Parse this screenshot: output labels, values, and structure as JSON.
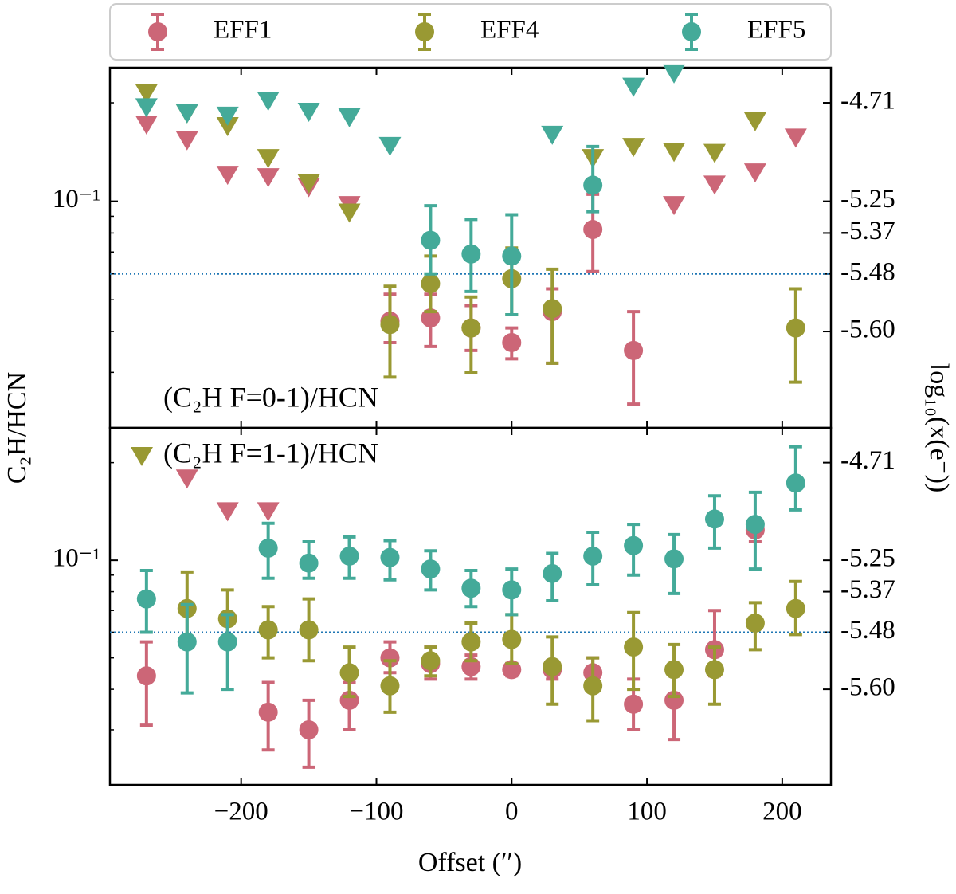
{
  "chart_data": [
    {
      "type": "scatter",
      "log_y": true,
      "ylabel": "C₂H/HCN",
      "y2label": "log₁₀(x(e⁻))",
      "annotation": "(C₂H F=0-1)/HCN",
      "legend": "top-outside",
      "x": [
        -270,
        -240,
        -210,
        -180,
        -150,
        -120,
        -90,
        -60,
        -30,
        0,
        30,
        60,
        90,
        120,
        150,
        180,
        210
      ],
      "xlim": [
        -297,
        236
      ],
      "ylim": [
        0.0203,
        0.256
      ],
      "yticks": [
        {
          "value": 0.1,
          "label": "10⁻¹"
        }
      ],
      "yminorticks": [
        0.03,
        0.04,
        0.05,
        0.06,
        0.07,
        0.08,
        0.09,
        0.2
      ],
      "y2ticks": [
        {
          "value": 0.2,
          "label": "-4.71"
        },
        {
          "value": 0.1,
          "label": "-5.25"
        },
        {
          "value": 0.08,
          "label": "-5.37"
        },
        {
          "value": 0.06,
          "label": "-5.48"
        },
        {
          "value": 0.04,
          "label": "-5.60"
        }
      ],
      "hline": 0.06,
      "hline_color": "#1f77b4",
      "series": [
        {
          "name": "EFF1",
          "color": "#cc6677",
          "values": [
            null,
            null,
            null,
            null,
            null,
            null,
            0.043,
            0.044,
            0.041,
            0.037,
            0.046,
            0.082,
            0.035,
            null,
            null,
            null,
            null
          ],
          "errors": [
            null,
            null,
            null,
            null,
            null,
            null,
            [
              0.006,
              0.009
            ],
            [
              0.008,
              0.008
            ],
            [
              0.006,
              0.007
            ],
            [
              0.004,
              0.004
            ],
            [
              0.014,
              0.008
            ],
            [
              0.021,
              0.023
            ],
            [
              0.011,
              0.011
            ],
            null,
            null,
            null,
            null
          ],
          "upper_limits": [
            0.171,
            0.153,
            0.12,
            0.118,
            0.11,
            0.097,
            null,
            null,
            null,
            null,
            null,
            null,
            null,
            0.097,
            0.112,
            0.122,
            0.156
          ]
        },
        {
          "name": "EFF4",
          "color": "#999933",
          "values": [
            null,
            null,
            null,
            null,
            null,
            null,
            0.042,
            0.056,
            0.041,
            0.058,
            0.047,
            null,
            null,
            null,
            null,
            null,
            0.041
          ],
          "errors": [
            null,
            null,
            null,
            null,
            null,
            null,
            [
              0.013,
              0.013
            ],
            [
              0.01,
              0.012
            ],
            [
              0.011,
              0.01
            ],
            [
              0.013,
              0.014
            ],
            [
              0.015,
              0.015
            ],
            null,
            null,
            null,
            null,
            null,
            [
              0.013,
              0.013
            ]
          ],
          "upper_limits": [
            0.213,
            0.185,
            0.169,
            0.135,
            0.113,
            0.092,
            null,
            null,
            null,
            null,
            null,
            0.135,
            0.146,
            0.141,
            0.14,
            0.175,
            null
          ]
        },
        {
          "name": "EFF5",
          "color": "#44aa99",
          "values": [
            null,
            null,
            null,
            null,
            null,
            null,
            null,
            0.076,
            0.069,
            0.068,
            null,
            0.112,
            null,
            null,
            null,
            null,
            null
          ],
          "errors": [
            null,
            null,
            null,
            null,
            null,
            null,
            null,
            [
              0.016,
              0.021
            ],
            [
              0.016,
              0.019
            ],
            [
              0.023,
              0.023
            ],
            null,
            [
              0.019,
              0.035
            ],
            null,
            null,
            null,
            null,
            null
          ],
          "upper_limits": [
            0.193,
            0.185,
            0.182,
            0.202,
            0.187,
            0.18,
            0.147,
            null,
            null,
            null,
            0.159,
            null,
            0.223,
            0.245,
            null,
            null,
            null
          ]
        }
      ]
    },
    {
      "type": "scatter",
      "log_y": true,
      "xlabel": "Offset (′′)",
      "annotation": "(C₂H F=1-1)/HCN",
      "x": [
        -270,
        -240,
        -210,
        -180,
        -150,
        -120,
        -90,
        -60,
        -30,
        0,
        30,
        60,
        90,
        120,
        150,
        180,
        210
      ],
      "xlim": [
        -297,
        236
      ],
      "ylim": [
        0.0203,
        0.256
      ],
      "xticks": [
        {
          "value": -200,
          "label": "−200"
        },
        {
          "value": -100,
          "label": "−100"
        },
        0,
        100,
        200
      ],
      "yticks": [
        {
          "value": 0.1,
          "label": "10⁻¹"
        }
      ],
      "yminorticks": [
        0.03,
        0.04,
        0.05,
        0.06,
        0.07,
        0.08,
        0.09,
        0.2
      ],
      "y2ticks": [
        {
          "value": 0.2,
          "label": "-4.71"
        },
        {
          "value": 0.1,
          "label": "-5.25"
        },
        {
          "value": 0.08,
          "label": "-5.37"
        },
        {
          "value": 0.06,
          "label": "-5.48"
        },
        {
          "value": 0.04,
          "label": "-5.60"
        }
      ],
      "hline": 0.06,
      "hline_color": "#1f77b4",
      "series": [
        {
          "color": "#cc6677",
          "values": [
            0.044,
            null,
            null,
            0.034,
            0.03,
            0.037,
            0.05,
            0.048,
            0.047,
            0.046,
            0.046,
            0.045,
            0.036,
            0.037,
            0.053,
            0.124,
            null
          ],
          "errors": [
            [
              0.013,
              0.012
            ],
            null,
            null,
            [
              0.008,
              0.008
            ],
            [
              0.007,
              0.007
            ],
            [
              0.007,
              0.005
            ],
            [
              0.005,
              0.006
            ],
            [
              0.005,
              0.006
            ],
            [
              0.004,
              0.004
            ],
            [
              0.002,
              0.002
            ],
            [
              0.003,
              0.003
            ],
            [
              0.004,
              0.005
            ],
            [
              0.006,
              0.007
            ],
            [
              0.009,
              0.01
            ],
            [
              0.009,
              0.017
            ],
            [
              0.01,
              0.01
            ],
            null
          ],
          "upper_limits": [
            null,
            0.178,
            0.141,
            0.141,
            null,
            null,
            null,
            null,
            null,
            null,
            null,
            null,
            null,
            null,
            null,
            null,
            null
          ]
        },
        {
          "color": "#999933",
          "values": [
            null,
            0.071,
            0.066,
            0.061,
            0.061,
            0.045,
            0.041,
            0.049,
            0.056,
            0.057,
            0.047,
            0.041,
            0.054,
            0.046,
            0.046,
            0.064,
            0.071
          ],
          "errors": [
            null,
            [
              0.014,
              0.021
            ],
            [
              0.012,
              0.015
            ],
            [
              0.011,
              0.011
            ],
            [
              0.012,
              0.015
            ],
            [
              0.007,
              0.009
            ],
            [
              0.007,
              0.008
            ],
            [
              0.005,
              0.005
            ],
            [
              0.007,
              0.008
            ],
            [
              0.009,
              0.011
            ],
            [
              0.011,
              0.011
            ],
            [
              0.009,
              0.009
            ],
            [
              0.014,
              0.015
            ],
            [
              0.008,
              0.009
            ],
            [
              0.01,
              0.008
            ],
            [
              0.011,
              0.01
            ],
            [
              0.012,
              0.015
            ]
          ]
        },
        {
          "color": "#44aa99",
          "values": [
            0.076,
            0.056,
            0.056,
            0.109,
            0.098,
            0.103,
            0.102,
            0.094,
            0.082,
            0.081,
            0.091,
            0.103,
            0.111,
            0.101,
            0.134,
            0.129,
            0.173
          ],
          "errors": [
            [
              0.016,
              0.017
            ],
            [
              0.017,
              0.017
            ],
            [
              0.016,
              0.012
            ],
            [
              0.021,
              0.021
            ],
            [
              0.01,
              0.016
            ],
            [
              0.015,
              0.015
            ],
            [
              0.015,
              0.013
            ],
            [
              0.013,
              0.013
            ],
            [
              0.01,
              0.011
            ],
            [
              0.013,
              0.013
            ],
            [
              0.016,
              0.014
            ],
            [
              0.019,
              0.019
            ],
            [
              0.021,
              0.018
            ],
            [
              0.022,
              0.019
            ],
            [
              0.025,
              0.024
            ],
            [
              0.035,
              0.033
            ],
            [
              0.03,
              0.051
            ]
          ]
        }
      ]
    }
  ]
}
